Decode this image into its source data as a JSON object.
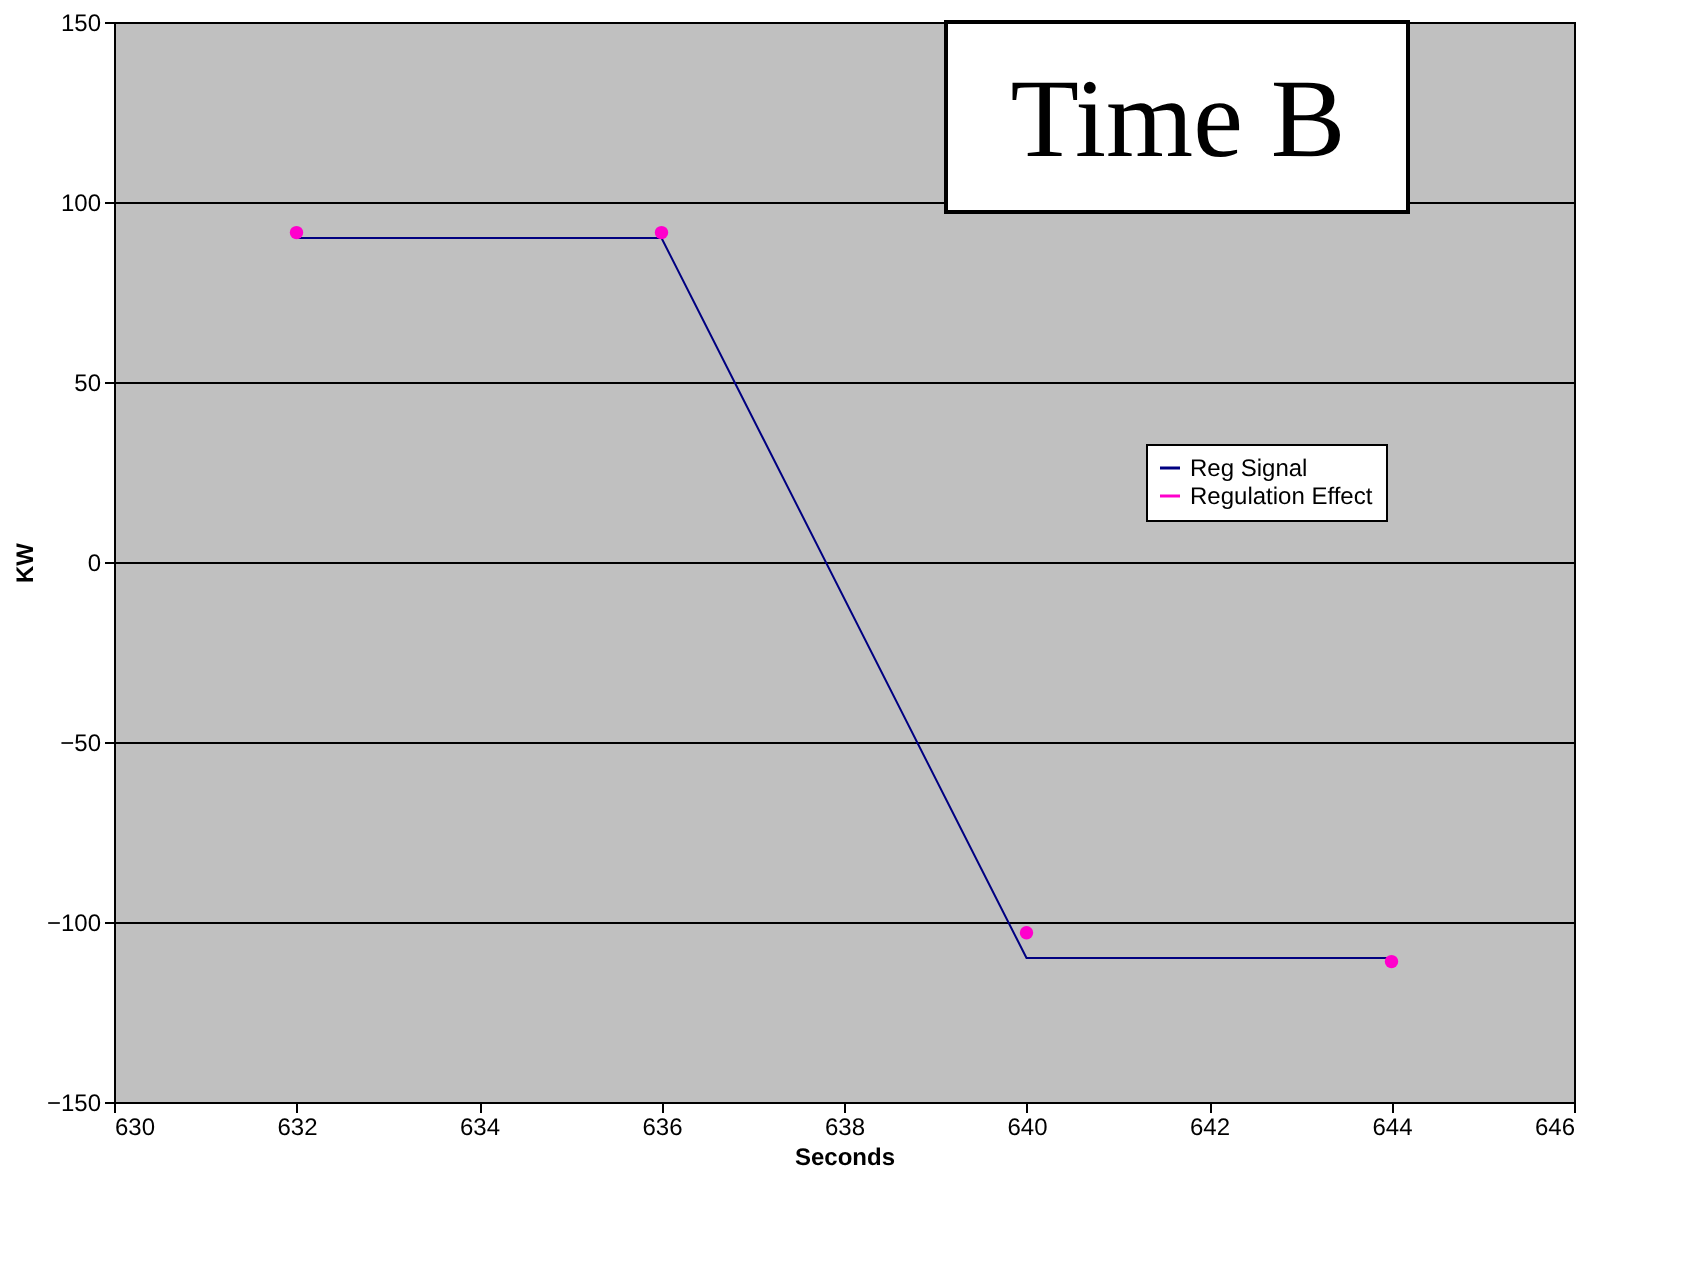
{
  "chart_data": {
    "type": "line",
    "xlabel": "Seconds",
    "ylabel": "KW",
    "annotations": [
      "Time B"
    ],
    "x": [
      632,
      636,
      640,
      644
    ],
    "series": [
      {
        "name": "Reg Signal",
        "color": "#000080",
        "values": [
          90,
          90,
          -110,
          -110
        ],
        "marker": "none"
      },
      {
        "name": "Regulation Effect",
        "color": "#ff00cc",
        "values": [
          91.5,
          91.5,
          -103,
          -111
        ],
        "type": "scatter",
        "marker": "circle"
      }
    ],
    "xlim": [
      630,
      646
    ],
    "xticks": [
      630,
      632,
      634,
      636,
      638,
      640,
      642,
      644,
      646
    ],
    "ylim": [
      -150,
      150
    ],
    "yticks": [
      -150,
      -100,
      -50,
      0,
      50,
      100,
      150
    ],
    "grid": "y",
    "legend": "right"
  }
}
